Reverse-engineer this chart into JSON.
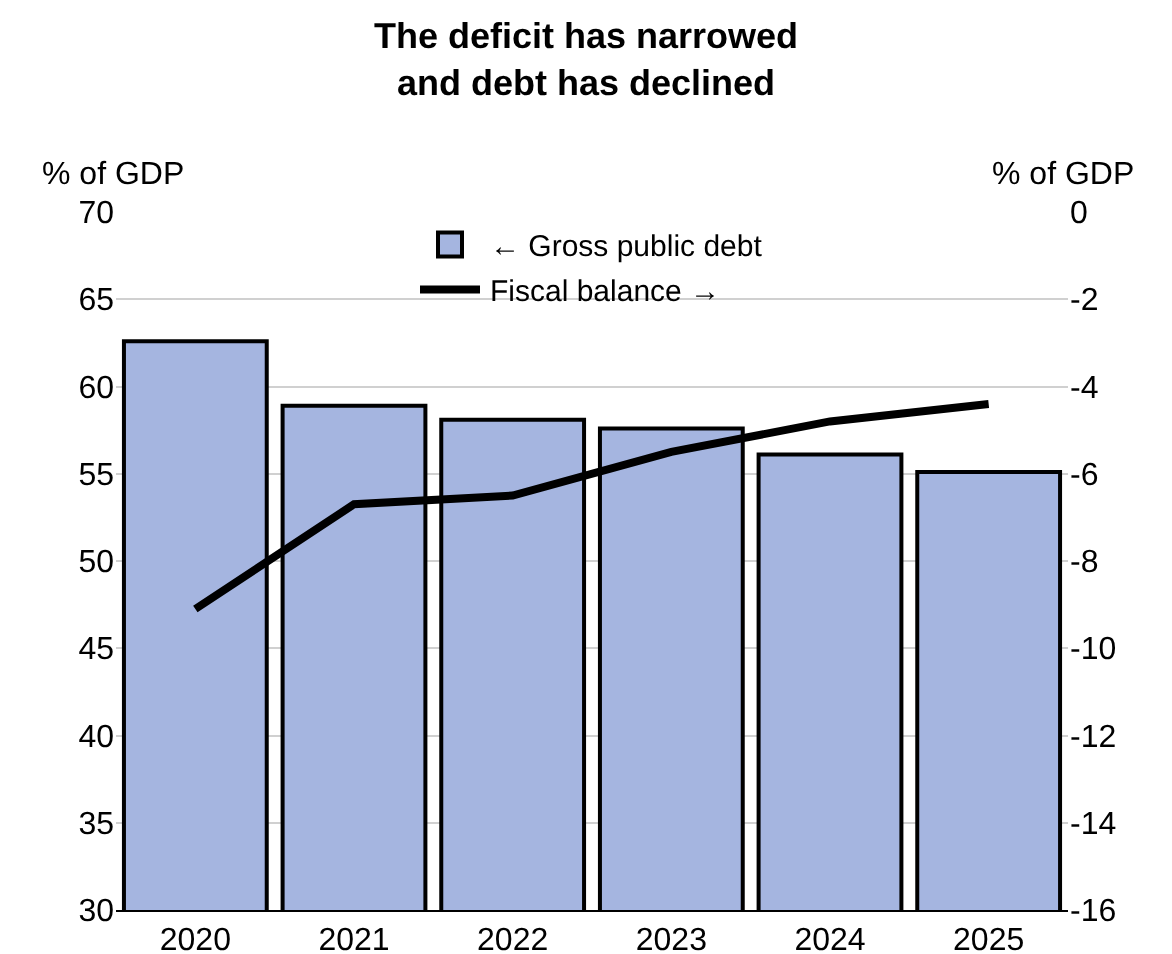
{
  "chart_data": {
    "type": "bar",
    "title": "The deficit has narrowed\nand debt has declined",
    "ylabel": "% of GDP",
    "y2label": "% of GDP",
    "categories": [
      "2020",
      "2021",
      "2022",
      "2023",
      "2024",
      "2025"
    ],
    "series": [
      {
        "name": "← Gross public debt",
        "color": "#a5b5e0",
        "values": [
          62.6,
          58.9,
          58.1,
          57.6,
          56.1,
          55.1
        ]
      },
      {
        "name": "Fiscal balance →",
        "type": "line",
        "axis": "y2",
        "color": "#000000",
        "values": [
          -9.1,
          -6.7,
          -6.5,
          -5.5,
          -4.8,
          -4.4
        ]
      }
    ],
    "ylim": [
      30,
      70
    ],
    "yticks": [
      30,
      35,
      40,
      45,
      50,
      55,
      60,
      65,
      70
    ],
    "y2lim": [
      -16,
      0
    ],
    "y2ticks": [
      -16,
      -14,
      -12,
      -10,
      -8,
      -6,
      -4,
      -2,
      0
    ],
    "grid": "y",
    "legend": "top"
  }
}
